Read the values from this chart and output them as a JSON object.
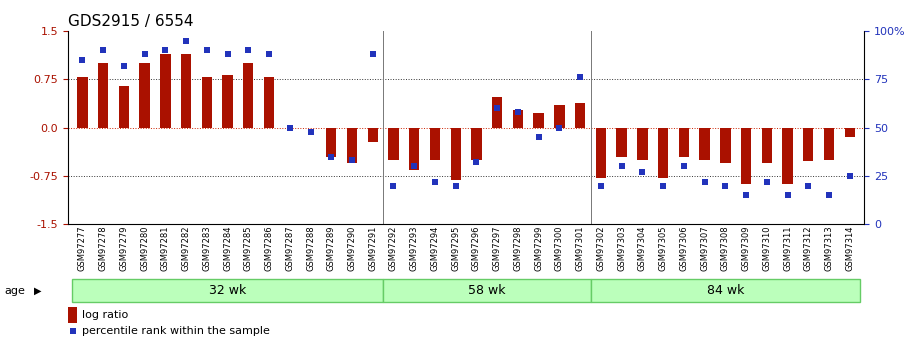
{
  "title": "GDS2915 / 6554",
  "samples": [
    "GSM97277",
    "GSM97278",
    "GSM97279",
    "GSM97280",
    "GSM97281",
    "GSM97282",
    "GSM97283",
    "GSM97284",
    "GSM97285",
    "GSM97286",
    "GSM97287",
    "GSM97288",
    "GSM97289",
    "GSM97290",
    "GSM97291",
    "GSM97292",
    "GSM97293",
    "GSM97294",
    "GSM97295",
    "GSM97296",
    "GSM97297",
    "GSM97298",
    "GSM97299",
    "GSM97300",
    "GSM97301",
    "GSM97302",
    "GSM97303",
    "GSM97304",
    "GSM97305",
    "GSM97306",
    "GSM97307",
    "GSM97308",
    "GSM97309",
    "GSM97310",
    "GSM97311",
    "GSM97312",
    "GSM97313",
    "GSM97314"
  ],
  "log_ratio": [
    0.78,
    1.0,
    0.65,
    1.0,
    1.15,
    1.15,
    0.78,
    0.82,
    1.0,
    0.78,
    0.0,
    0.0,
    -0.45,
    -0.55,
    -0.22,
    -0.5,
    -0.65,
    -0.5,
    -0.82,
    -0.5,
    0.48,
    0.28,
    0.22,
    0.35,
    0.38,
    -0.78,
    -0.45,
    -0.5,
    -0.78,
    -0.45,
    -0.5,
    -0.55,
    -0.88,
    -0.55,
    -0.88,
    -0.52,
    -0.5,
    -0.15
  ],
  "percentile": [
    85,
    90,
    82,
    88,
    90,
    95,
    90,
    88,
    90,
    88,
    50,
    48,
    35,
    33,
    88,
    20,
    30,
    22,
    20,
    32,
    60,
    58,
    45,
    50,
    76,
    20,
    30,
    27,
    20,
    30,
    22,
    20,
    15,
    22,
    15,
    20,
    15,
    25
  ],
  "groups": [
    {
      "label": "32 wk",
      "start": 0,
      "end": 14
    },
    {
      "label": "58 wk",
      "start": 15,
      "end": 24
    },
    {
      "label": "84 wk",
      "start": 25,
      "end": 37
    }
  ],
  "sep_indices": [
    14.5,
    24.5
  ],
  "bar_color": "#aa1100",
  "dot_color": "#2233bb",
  "zero_line_color": "#cc2200",
  "hline_color": "#333333",
  "ylim_left": [
    -1.5,
    1.5
  ],
  "ylim_right": [
    0,
    100
  ],
  "yticks_left": [
    -1.5,
    -0.75,
    0.0,
    0.75,
    1.5
  ],
  "yticks_right": [
    0,
    25,
    50,
    75,
    100
  ],
  "hlines": [
    0.75,
    0.0,
    -0.75
  ],
  "group_fill": "#bbffbb",
  "group_edge": "#66cc66",
  "age_label": "age",
  "legend_log": "log ratio",
  "legend_pct": "percentile rank within the sample",
  "bar_width": 0.5,
  "tick_fontsize": 6,
  "group_fontsize": 9
}
